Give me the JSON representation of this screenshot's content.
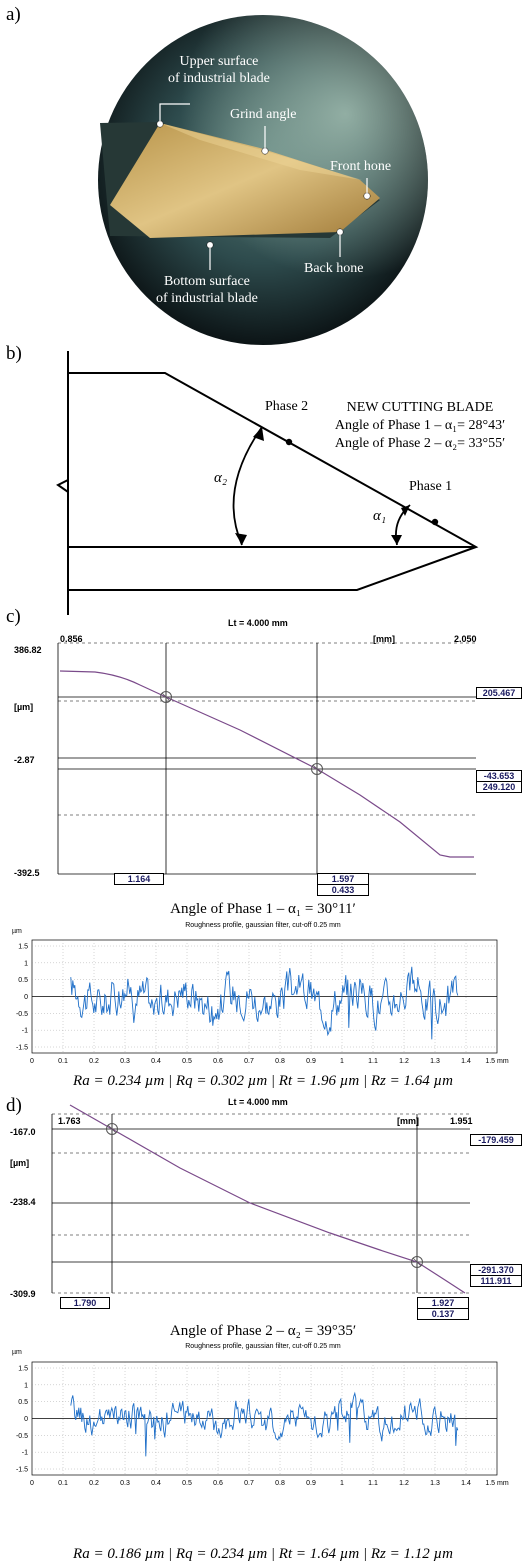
{
  "panel_a": {
    "label": "a)",
    "labels": {
      "upper1": "Upper surface",
      "upper2": "of industrial blade",
      "grind": "Grind angle",
      "front": "Front hone",
      "back": "Back hone",
      "bottom1": "Bottom surface",
      "bottom2": "of industrial blade"
    }
  },
  "panel_b": {
    "label": "b)",
    "title": "NEW CUTTING BLADE",
    "line1": "Angle of Phase 1 – α₁= 28°43′",
    "line2": "Angle of Phase 2 – α₂= 33°55′",
    "phase2": "Phase 2",
    "phase1": "Phase 1",
    "alpha2": "α₂",
    "alpha1": "α₁"
  },
  "panel_c": {
    "label": "c)",
    "lt": "Lt =  4.000 mm",
    "x_left": "0.856",
    "x_unit": "[mm]",
    "x_right": "2.050",
    "y_top": "386.82",
    "y_unit": "[µm]",
    "y_mid": "-2.87",
    "y_bot": "-392.5",
    "box_r1": "205.467",
    "box_r2": "-43.653",
    "box_r3": "249.120",
    "box_b1": "1.164",
    "box_b2": "1.597",
    "box_b3": "0.433",
    "caption": "Angle of Phase 1 – α₁ = 30°11′",
    "rough_title": "Roughness profile, gaussian filter, cut-off 0.25 mm",
    "rough_unit": "µm",
    "rough_text": "Ra = 0.234 µm | Rq = 0.302 µm | Rt = 1.96 µm | Rz = 1.64 µm"
  },
  "panel_d": {
    "label": "d)",
    "lt": "Lt =  4.000 mm",
    "x_left": "1.763",
    "x_unit": "[mm]",
    "x_right": "1.951",
    "y_top": "-167.0",
    "y_unit": "[µm]",
    "y_mid": "-238.4",
    "y_bot": "-309.9",
    "box_r1": "-179.459",
    "box_r2": "-291.370",
    "box_r3": "111.911",
    "box_b1": "1.790",
    "box_b2": "1.927",
    "box_b3": "0.137",
    "caption": "Angle of Phase 2 – α₂ = 39°35′",
    "rough_title": "Roughness profile, gaussian filter, cut-off 0.25 mm",
    "rough_unit": "µm",
    "rough_text": "Ra = 0.186 µm | Rq = 0.234 µm | Rt = 1.64 µm | Rz = 1.12 µm"
  },
  "rough_axes": {
    "x_ticks": [
      "0",
      "0.1",
      "0.2",
      "0.3",
      "0.4",
      "0.5",
      "0.6",
      "0.7",
      "0.8",
      "0.9",
      "1",
      "1.1",
      "1.2",
      "1.3",
      "1.4",
      "1.5 mm"
    ],
    "y_ticks": [
      "1.5",
      "1",
      "0.5",
      "0",
      "-0.5",
      "-1",
      "-1.5"
    ]
  },
  "colors": {
    "profile_line": "#7a4a8a",
    "roughness_line": "#1f6fc8",
    "box_text": "#1a1a60"
  }
}
